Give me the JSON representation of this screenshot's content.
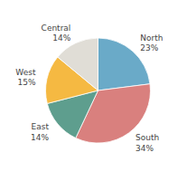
{
  "chart_data": {
    "type": "pie",
    "categories": [
      "North",
      "South",
      "East",
      "West",
      "Central"
    ],
    "values": [
      23,
      34,
      14,
      15,
      14
    ],
    "value_labels": [
      "23%",
      "34%",
      "14%",
      "15%",
      "14%"
    ],
    "colors": [
      "#6aaac8",
      "#d9807e",
      "#5e9e8e",
      "#f5b942",
      "#e0ddd6"
    ],
    "data_labels": true
  }
}
